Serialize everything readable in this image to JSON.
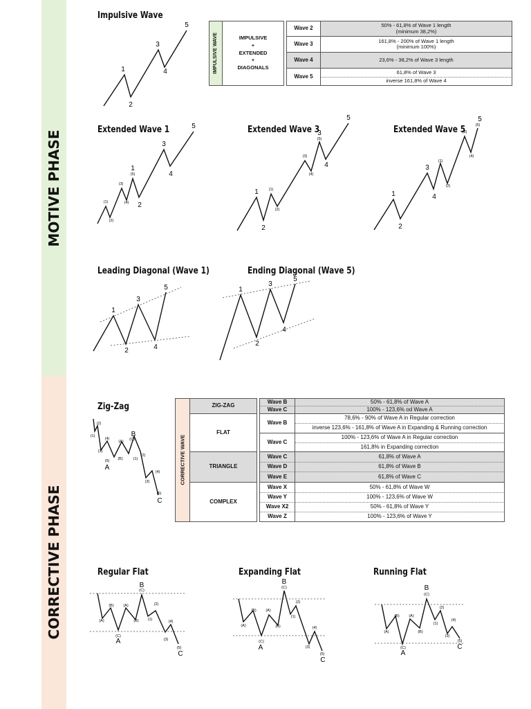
{
  "phases": {
    "motive": "MOTIVE PHASE",
    "corrective": "CORRECTIVE PHASE"
  },
  "titles": {
    "impulsive_wave": "Impulsive Wave",
    "extended_wave_1": "Extended Wave 1",
    "extended_wave_3": "Extended Wave 3",
    "extended_wave_5": "Extended Wave 5",
    "leading_diagonal": "Leading Diagonal (Wave 1)",
    "ending_diagonal": "Ending Diagonal (Wave 5)",
    "zig_zag": "Zig-Zag",
    "regular_flat": "Regular Flat",
    "expanding_flat": "Expanding Flat",
    "running_flat": "Running Flat"
  },
  "impulse_table": {
    "side_label": "IMPULSIVE WAVE",
    "type_lines": [
      "IMPULSIVE",
      "+",
      "EXTENDED",
      "+",
      "DIAGONALS"
    ],
    "rows": [
      {
        "wave": "Wave 2",
        "lines": [
          "50% - 61,8% of Wave 1 length",
          "(minimum 38,2%)"
        ]
      },
      {
        "wave": "Wave 3",
        "lines": [
          "161,8% - 200% of Wave 1 length",
          "(minimum 100%)"
        ]
      },
      {
        "wave": "Wave 4",
        "lines": [
          "23,6% - 38,2% of Wave 3 length"
        ]
      },
      {
        "wave": "Wave 5",
        "lines": [
          "61,8% of Wave 3"
        ]
      },
      {
        "wave": "",
        "lines": [
          "inverse 161,8% of Wave 4"
        ]
      }
    ]
  },
  "corrective_table": {
    "side_label": "CORRECTIVE WAVE",
    "groups": [
      "ZIG-ZAG",
      "FLAT",
      "TRIANGLE",
      "COMPLEX"
    ],
    "waves": [
      "Wave B",
      "Wave C",
      "Wave B",
      "Wave C",
      "Wave C",
      "Wave D",
      "Wave E",
      "Wave X",
      "Wave Y",
      "Wave X2",
      "Wave Z"
    ],
    "rules": [
      "50% - 61,8% of Wave A",
      "100% - 123,6% od Wave A",
      "78,6% - 90% of Wave A in Regular correction",
      "inverse 123,6% - 161,8% of Wave A in Expanding & Running correction",
      "100% - 123,6% of Wave A in Regular correction",
      "161,8% in Expanding correction",
      "61,8% of Wave A",
      "61,8% of Wave B",
      "61,8% of Wave C",
      "50% - 61,8% of Wave W",
      "100% - 123,6% of Wave W",
      "50% - 61,8% of Wave Y",
      "100% - 123,6% of Wave Y"
    ]
  },
  "wave_labels": {
    "main": [
      "1",
      "2",
      "3",
      "4",
      "5"
    ],
    "sub": [
      "(1)",
      "(2)",
      "(3)",
      "(4)",
      "(5)"
    ],
    "corrective": [
      "A",
      "B",
      "C"
    ],
    "corrective_sub": [
      "(A)",
      "(B)",
      "(C)"
    ]
  }
}
